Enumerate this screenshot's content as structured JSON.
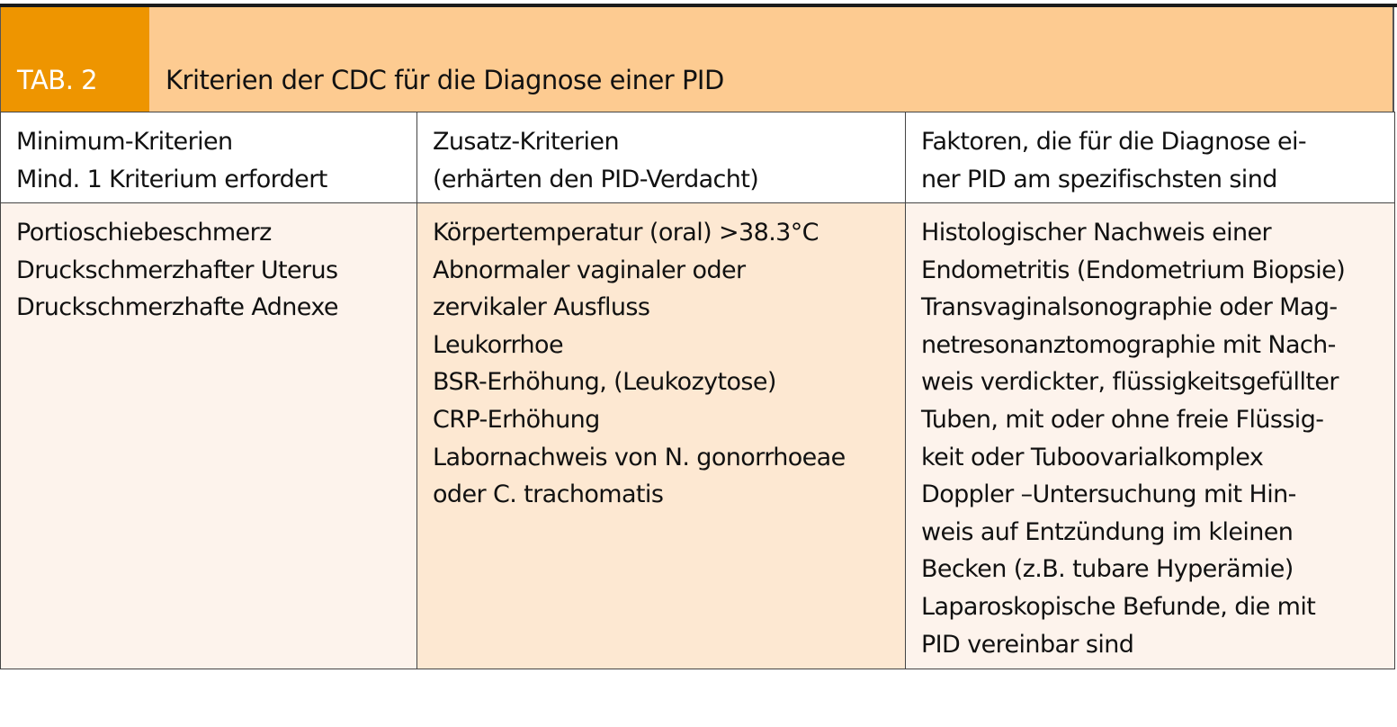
{
  "table": {
    "label": "TAB. 2",
    "title": "Kriterien der CDC für die Diagnose einer PID",
    "colors": {
      "label_bg": "#EE9500",
      "title_bg": "#FDCB91",
      "body_light": "#FDF3EC",
      "body_mid": "#FDE8D2"
    },
    "headers": [
      [
        "Minimum-Kriterien",
        "Mind. 1 Kriterium erfordert"
      ],
      [
        "Zusatz-Kriterien",
        "(erhärten den PID-Verdacht)"
      ],
      [
        "Faktoren, die für die Diagnose ei-",
        "ner PID am spezifischsten sind"
      ]
    ],
    "columns": [
      [
        "Portioschiebeschmerz",
        "Druckschmerzhafter Uterus",
        "Druckschmerzhafte Adnexe"
      ],
      [
        "Körpertemperatur (oral) >38.3°C",
        "Abnormaler vaginaler oder",
        "zervikaler Ausfluss",
        "Leukorrhoe",
        "BSR-Erhöhung, (Leukozytose)",
        "CRP-Erhöhung",
        "Labornachweis von N. gonorrhoeae",
        "oder C. trachomatis"
      ],
      [
        "Histologischer Nachweis einer",
        "Endometritis (Endometrium Biopsie)",
        "Transvaginalsonographie oder Mag-",
        "netresonanztomographie mit Nach-",
        "weis verdickter, flüssigkeitsgefüllter",
        "Tuben, mit oder ohne freie Flüssig-",
        "keit oder Tuboovarialkomplex",
        "Doppler –Untersuchung mit Hin-",
        "weis auf Entzündung im kleinen",
        "Becken (z.B. tubare Hyperämie)",
        "Laparoskopische Befunde, die mit",
        "PID vereinbar sind"
      ]
    ]
  }
}
